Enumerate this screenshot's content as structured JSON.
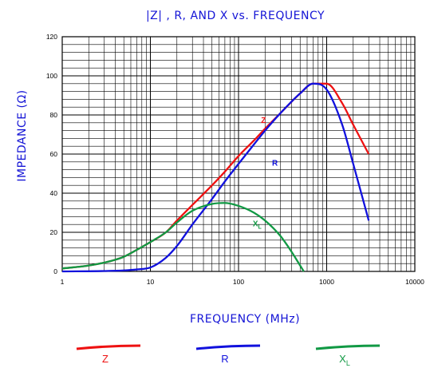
{
  "chart_data": {
    "type": "line",
    "title": "|Z| , R, AND X vs. FREQUENCY",
    "xlabel": "FREQUENCY (MHz)",
    "ylabel": "IMPEDANCE (Ω)",
    "xscale": "log",
    "xlim": [
      1,
      10000
    ],
    "ylim": [
      0,
      120
    ],
    "x_ticks": [
      "1",
      "10",
      "100",
      "1000",
      "10000"
    ],
    "y_ticks": [
      "0",
      "20",
      "40",
      "60",
      "80",
      "100",
      "120"
    ],
    "grid": true,
    "legend_position": "bottom",
    "series": [
      {
        "name": "Z",
        "label": "Z",
        "color": "#ee1111",
        "x": [
          1,
          2,
          3,
          5,
          7,
          10,
          15,
          20,
          30,
          50,
          70,
          100,
          150,
          200,
          300,
          500,
          700,
          1000,
          1500,
          2000,
          3000
        ],
        "y": [
          1.5,
          3,
          4.5,
          7.5,
          11,
          15,
          20,
          26,
          34,
          44,
          51,
          59,
          67,
          73,
          81,
          91,
          96,
          96,
          86,
          75,
          60
        ]
      },
      {
        "name": "R",
        "label": "R",
        "color": "#1111dd",
        "x": [
          1,
          3,
          5,
          7,
          10,
          15,
          20,
          30,
          50,
          70,
          100,
          150,
          200,
          300,
          500,
          700,
          1000,
          1500,
          2000,
          3000
        ],
        "y": [
          0,
          0.2,
          0.5,
          1,
          2,
          7,
          13,
          24,
          37,
          46,
          55,
          65,
          72,
          81,
          91,
          96,
          93,
          75,
          55,
          26
        ]
      },
      {
        "name": "XL",
        "label": "X",
        "label_sub": "L",
        "color": "#119944",
        "x": [
          1,
          2,
          3,
          5,
          7,
          10,
          15,
          20,
          30,
          50,
          70,
          100,
          150,
          200,
          300,
          400,
          500,
          550
        ],
        "y": [
          1.5,
          3,
          4.5,
          7.5,
          11,
          15,
          20,
          25,
          31,
          34.5,
          35,
          33.5,
          30,
          26,
          18,
          10,
          3,
          0
        ]
      }
    ],
    "curve_labels": [
      {
        "series": 0,
        "text": "Z",
        "x": 180,
        "y": 76
      },
      {
        "series": 1,
        "text": "R",
        "x": 240,
        "y": 54
      },
      {
        "series": 2,
        "text": "X",
        "sub": "L",
        "x": 145,
        "y": 23
      }
    ]
  }
}
